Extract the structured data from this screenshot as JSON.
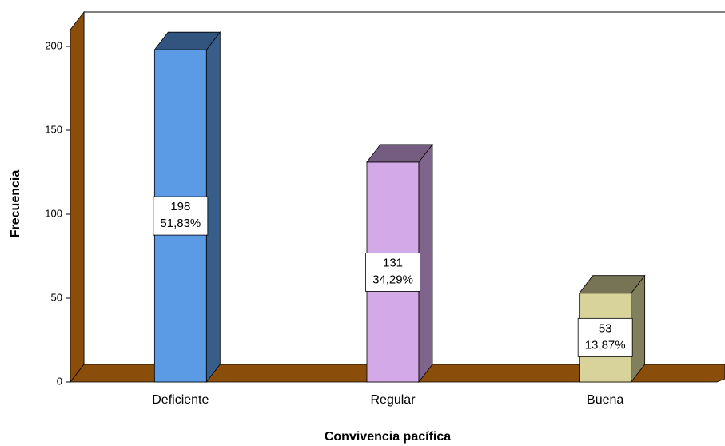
{
  "chart_data": {
    "type": "bar3d",
    "x_label": "Convivencia pacífica",
    "y_label": "Frecuencia",
    "categories": [
      "Deficiente",
      "Regular",
      "Buena"
    ],
    "values": [
      198,
      131,
      53
    ],
    "percents": [
      51.83,
      34.29,
      13.87
    ],
    "percent_labels": [
      "51,83%",
      "34,29%",
      "13,87%"
    ],
    "colors": [
      "#5b9be6",
      "#d3a9e8",
      "#d8d39a"
    ],
    "ylim": [
      0,
      210
    ],
    "yticks": [
      0,
      50,
      100,
      150,
      200
    ]
  }
}
